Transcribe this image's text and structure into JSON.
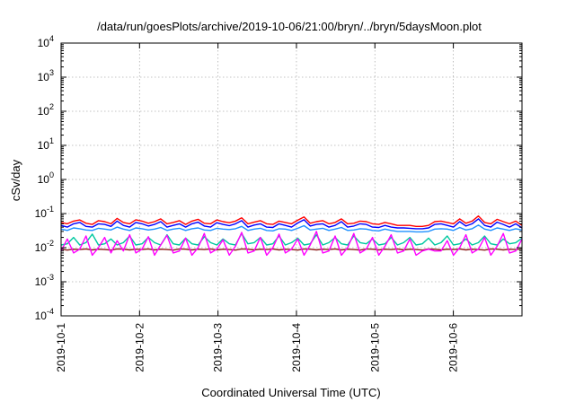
{
  "chart_data": {
    "type": "line",
    "title": "/data/run/goesPlots/archive/2019-10-06/21:00/bryn/../bryn/5daysMoon.plot",
    "xlabel": "Coordinated Universal Time (UTC)",
    "ylabel": "cSv/day",
    "yscale": "log",
    "ylim": [
      0.0001,
      10000
    ],
    "yticks": [
      {
        "base": "10",
        "exp": "-4",
        "value": 0.0001
      },
      {
        "base": "10",
        "exp": "-3",
        "value": 0.001
      },
      {
        "base": "10",
        "exp": "-2",
        "value": 0.01
      },
      {
        "base": "10",
        "exp": "-1",
        "value": 0.1
      },
      {
        "base": "10",
        "exp": "0",
        "value": 1
      },
      {
        "base": "10",
        "exp": "1",
        "value": 10
      },
      {
        "base": "10",
        "exp": "2",
        "value": 100
      },
      {
        "base": "10",
        "exp": "3",
        "value": 1000
      },
      {
        "base": "10",
        "exp": "4",
        "value": 10000
      }
    ],
    "xlim": [
      "2019-10-01",
      "2019-10-06 21:00"
    ],
    "xticks": [
      "2019-10-1",
      "2019-10-2",
      "2019-10-3",
      "2019-10-4",
      "2019-10-5",
      "2019-10-6"
    ],
    "grid": true,
    "legend": "none",
    "series": [
      {
        "color": "#ff0000",
        "values": [
          0.055,
          0.05,
          0.06,
          0.065,
          0.052,
          0.048,
          0.062,
          0.058,
          0.05,
          0.072,
          0.055,
          0.05,
          0.066,
          0.06,
          0.052,
          0.058,
          0.07,
          0.05,
          0.055,
          0.062,
          0.048,
          0.06,
          0.068,
          0.052,
          0.05,
          0.065,
          0.058,
          0.054,
          0.06,
          0.075,
          0.05,
          0.056,
          0.062,
          0.05,
          0.048,
          0.06,
          0.055,
          0.05,
          0.064,
          0.08,
          0.052,
          0.058,
          0.062,
          0.05,
          0.055,
          0.07,
          0.05,
          0.052,
          0.06,
          0.058,
          0.05,
          0.048,
          0.055,
          0.05,
          0.045,
          0.045,
          0.045,
          0.042,
          0.042,
          0.045,
          0.058,
          0.06,
          0.055,
          0.05,
          0.07,
          0.052,
          0.06,
          0.085,
          0.055,
          0.05,
          0.068,
          0.058,
          0.05,
          0.06,
          0.045
        ]
      },
      {
        "color": "#0000ff",
        "values": [
          0.045,
          0.04,
          0.05,
          0.055,
          0.042,
          0.04,
          0.05,
          0.048,
          0.042,
          0.06,
          0.045,
          0.04,
          0.055,
          0.05,
          0.043,
          0.048,
          0.058,
          0.04,
          0.045,
          0.05,
          0.04,
          0.05,
          0.056,
          0.043,
          0.04,
          0.054,
          0.048,
          0.044,
          0.05,
          0.062,
          0.04,
          0.046,
          0.05,
          0.04,
          0.039,
          0.05,
          0.045,
          0.04,
          0.053,
          0.066,
          0.043,
          0.048,
          0.05,
          0.04,
          0.045,
          0.058,
          0.04,
          0.043,
          0.05,
          0.048,
          0.04,
          0.039,
          0.045,
          0.04,
          0.038,
          0.038,
          0.037,
          0.036,
          0.036,
          0.038,
          0.048,
          0.05,
          0.045,
          0.04,
          0.058,
          0.043,
          0.05,
          0.07,
          0.045,
          0.04,
          0.056,
          0.048,
          0.04,
          0.05,
          0.038
        ]
      },
      {
        "color": "#1e90ff",
        "values": [
          0.035,
          0.032,
          0.038,
          0.036,
          0.033,
          0.032,
          0.037,
          0.035,
          0.033,
          0.04,
          0.035,
          0.032,
          0.038,
          0.036,
          0.033,
          0.035,
          0.039,
          0.032,
          0.035,
          0.037,
          0.032,
          0.036,
          0.038,
          0.033,
          0.032,
          0.037,
          0.035,
          0.034,
          0.036,
          0.042,
          0.032,
          0.035,
          0.037,
          0.032,
          0.031,
          0.036,
          0.035,
          0.032,
          0.037,
          0.044,
          0.033,
          0.035,
          0.037,
          0.032,
          0.035,
          0.039,
          0.032,
          0.033,
          0.036,
          0.035,
          0.032,
          0.031,
          0.035,
          0.032,
          0.03,
          0.03,
          0.03,
          0.029,
          0.029,
          0.03,
          0.035,
          0.036,
          0.035,
          0.032,
          0.039,
          0.033,
          0.036,
          0.046,
          0.035,
          0.032,
          0.038,
          0.035,
          0.032,
          0.036,
          0.033
        ]
      },
      {
        "color": "#00c8a0",
        "values": [
          0.012,
          0.013,
          0.02,
          0.012,
          0.014,
          0.025,
          0.012,
          0.013,
          0.018,
          0.012,
          0.014,
          0.022,
          0.012,
          0.013,
          0.02,
          0.014,
          0.012,
          0.024,
          0.013,
          0.012,
          0.019,
          0.013,
          0.012,
          0.021,
          0.014,
          0.012,
          0.018,
          0.013,
          0.012,
          0.026,
          0.013,
          0.014,
          0.02,
          0.012,
          0.013,
          0.022,
          0.012,
          0.014,
          0.019,
          0.012,
          0.013,
          0.024,
          0.012,
          0.014,
          0.02,
          0.013,
          0.012,
          0.022,
          0.014,
          0.013,
          0.018,
          0.012,
          0.013,
          0.02,
          0.012,
          0.014,
          0.02,
          0.012,
          0.013,
          0.019,
          0.012,
          0.014,
          0.022,
          0.012,
          0.013,
          0.018,
          0.012,
          0.014,
          0.022,
          0.013,
          0.012,
          0.018,
          0.013,
          0.014,
          0.019
        ]
      },
      {
        "color": "#8b1a1a",
        "values": [
          0.009,
          0.0085,
          0.009,
          0.0088,
          0.0092,
          0.0086,
          0.009,
          0.0088,
          0.0085,
          0.0092,
          0.009,
          0.0086,
          0.009,
          0.0088,
          0.0092,
          0.0086,
          0.009,
          0.0088,
          0.0085,
          0.0092,
          0.009,
          0.0086,
          0.009,
          0.0088,
          0.0092,
          0.0086,
          0.009,
          0.0088,
          0.0085,
          0.0092,
          0.009,
          0.0086,
          0.009,
          0.0088,
          0.0092,
          0.0086,
          0.009,
          0.0088,
          0.0085,
          0.0092,
          0.009,
          0.0086,
          0.009,
          0.0088,
          0.0092,
          0.0086,
          0.009,
          0.0088,
          0.0085,
          0.0092,
          0.009,
          0.0086,
          0.009,
          0.0088,
          0.0092,
          0.0086,
          0.009,
          0.0088,
          0.0085,
          0.0092,
          0.009,
          0.0086,
          0.009,
          0.0088,
          0.0092,
          0.0086,
          0.009,
          0.0088,
          0.0085,
          0.0092,
          0.009,
          0.0086,
          0.009,
          0.0088,
          0.0092
        ]
      },
      {
        "color": "#ff00ff",
        "values": [
          0.008,
          0.018,
          0.007,
          0.009,
          0.022,
          0.006,
          0.01,
          0.02,
          0.007,
          0.016,
          0.008,
          0.024,
          0.007,
          0.009,
          0.021,
          0.006,
          0.012,
          0.023,
          0.007,
          0.008,
          0.019,
          0.006,
          0.01,
          0.026,
          0.007,
          0.009,
          0.017,
          0.006,
          0.011,
          0.028,
          0.007,
          0.008,
          0.02,
          0.006,
          0.01,
          0.025,
          0.007,
          0.009,
          0.018,
          0.006,
          0.012,
          0.03,
          0.007,
          0.008,
          0.022,
          0.006,
          0.01,
          0.026,
          0.007,
          0.009,
          0.02,
          0.006,
          0.011,
          0.024,
          0.007,
          0.008,
          0.018,
          0.006,
          0.008,
          0.009,
          0.008,
          0.008,
          0.016,
          0.006,
          0.01,
          0.024,
          0.007,
          0.009,
          0.02,
          0.006,
          0.011,
          0.026,
          0.007,
          0.008,
          0.018
        ]
      }
    ]
  }
}
